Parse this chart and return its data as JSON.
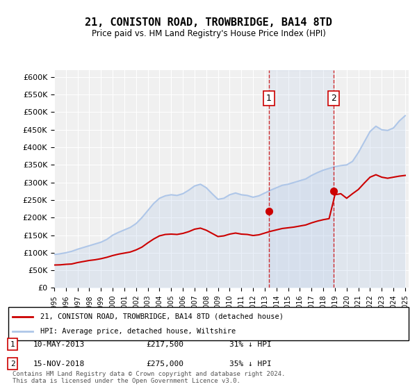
{
  "title": "21, CONISTON ROAD, TROWBRIDGE, BA14 8TD",
  "subtitle": "Price paid vs. HM Land Registry's House Price Index (HPI)",
  "ylabel": "",
  "ylim": [
    0,
    620000
  ],
  "yticks": [
    0,
    50000,
    100000,
    150000,
    200000,
    250000,
    300000,
    350000,
    400000,
    450000,
    500000,
    550000,
    600000
  ],
  "background_color": "#ffffff",
  "plot_bg_color": "#f0f0f0",
  "grid_color": "#ffffff",
  "hpi_color": "#aec6e8",
  "price_color": "#cc0000",
  "transaction1": {
    "date": 2013.36,
    "price": 217500,
    "label": "1"
  },
  "transaction2": {
    "date": 2018.88,
    "price": 275000,
    "label": "2"
  },
  "legend_price_label": "21, CONISTON ROAD, TROWBRIDGE, BA14 8TD (detached house)",
  "legend_hpi_label": "HPI: Average price, detached house, Wiltshire",
  "note1_label": "1",
  "note1_date": "10-MAY-2013",
  "note1_price": "£217,500",
  "note1_pct": "31% ↓ HPI",
  "note2_label": "2",
  "note2_date": "15-NOV-2018",
  "note2_price": "£275,000",
  "note2_pct": "35% ↓ HPI",
  "footer": "Contains HM Land Registry data © Crown copyright and database right 2024.\nThis data is licensed under the Open Government Licence v3.0.",
  "hpi_x": [
    1995,
    1995.5,
    1996,
    1996.5,
    1997,
    1997.5,
    1998,
    1998.5,
    1999,
    1999.5,
    2000,
    2000.5,
    2001,
    2001.5,
    2002,
    2002.5,
    2003,
    2003.5,
    2004,
    2004.5,
    2005,
    2005.5,
    2006,
    2006.5,
    2007,
    2007.5,
    2008,
    2008.5,
    2009,
    2009.5,
    2010,
    2010.5,
    2011,
    2011.5,
    2012,
    2012.5,
    2013,
    2013.5,
    2014,
    2014.5,
    2015,
    2015.5,
    2016,
    2016.5,
    2017,
    2017.5,
    2018,
    2018.5,
    2019,
    2019.5,
    2020,
    2020.5,
    2021,
    2021.5,
    2022,
    2022.5,
    2023,
    2023.5,
    2024,
    2024.5,
    2025
  ],
  "hpi_y": [
    95000,
    97000,
    100000,
    104000,
    110000,
    115000,
    120000,
    125000,
    130000,
    138000,
    150000,
    158000,
    165000,
    172000,
    183000,
    200000,
    220000,
    240000,
    255000,
    262000,
    265000,
    263000,
    268000,
    278000,
    290000,
    295000,
    285000,
    268000,
    252000,
    255000,
    265000,
    270000,
    265000,
    263000,
    258000,
    262000,
    270000,
    278000,
    285000,
    292000,
    295000,
    300000,
    305000,
    310000,
    320000,
    328000,
    335000,
    340000,
    345000,
    348000,
    350000,
    360000,
    385000,
    415000,
    445000,
    460000,
    450000,
    448000,
    455000,
    475000,
    490000
  ],
  "price_x": [
    1995,
    1995.5,
    1996,
    1996.5,
    1997,
    1997.5,
    1998,
    1998.5,
    1999,
    1999.5,
    2000,
    2000.5,
    2001,
    2001.5,
    2002,
    2002.5,
    2003,
    2003.5,
    2004,
    2004.5,
    2005,
    2005.5,
    2006,
    2006.5,
    2007,
    2007.5,
    2008,
    2008.5,
    2009,
    2009.5,
    2010,
    2010.5,
    2011,
    2011.5,
    2012,
    2012.5,
    2013,
    2013.5,
    2014,
    2014.5,
    2015,
    2015.5,
    2016,
    2016.5,
    2017,
    2017.5,
    2018,
    2018.5,
    2019,
    2019.5,
    2020,
    2020.5,
    2021,
    2021.5,
    2022,
    2022.5,
    2023,
    2023.5,
    2024,
    2024.5,
    2025
  ],
  "price_y": [
    65000,
    65500,
    67000,
    68000,
    72000,
    75000,
    78000,
    80000,
    83000,
    87000,
    92000,
    96000,
    99000,
    102000,
    108000,
    116000,
    128000,
    139000,
    148000,
    152000,
    153000,
    152000,
    155000,
    160000,
    167000,
    170000,
    164000,
    155000,
    146000,
    148000,
    153000,
    156000,
    153000,
    152000,
    149000,
    151000,
    156000,
    161000,
    165000,
    169000,
    171000,
    173000,
    176000,
    179000,
    185000,
    190000,
    194000,
    197000,
    265000,
    268000,
    255000,
    268000,
    280000,
    298000,
    315000,
    322000,
    315000,
    312000,
    315000,
    318000,
    320000
  ]
}
